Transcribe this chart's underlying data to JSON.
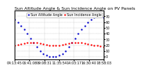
{
  "title": "Sun Altitude Angle & Sun Incidence Angle on PV Panels",
  "legend_labels": [
    "Sun Altitude Angle",
    "Sun Incidence Angle"
  ],
  "legend_colors": [
    "#0000cc",
    "#ff0000"
  ],
  "background_color": "#ffffff",
  "grid_color": "#aaaaaa",
  "x_times": [
    "04:13:45",
    "06:41:08",
    "09:08:31",
    "11:35:54",
    "14:03:17",
    "16:30:40",
    "18:58:03"
  ],
  "blue_x": [
    0,
    1,
    2,
    3,
    4,
    5,
    6,
    7,
    8,
    9,
    10,
    11,
    12,
    13,
    14,
    15,
    16,
    17,
    18,
    19,
    20,
    21,
    22,
    23,
    24,
    25,
    26,
    27,
    28
  ],
  "blue_y": [
    65,
    60,
    54,
    48,
    40,
    32,
    24,
    17,
    10,
    5,
    2,
    0,
    0,
    0,
    2,
    5,
    10,
    17,
    24,
    32,
    40,
    48,
    54,
    60,
    65,
    68,
    70,
    70,
    68
  ],
  "red_x": [
    0,
    1,
    2,
    3,
    4,
    5,
    6,
    7,
    8,
    9,
    10,
    11,
    12,
    13,
    14,
    15,
    16,
    17,
    18,
    19,
    20,
    21,
    22,
    23,
    24,
    25,
    26,
    27,
    28
  ],
  "red_y": [
    20,
    21,
    22,
    23,
    24,
    24,
    24,
    24,
    23,
    22,
    21,
    20,
    19,
    19,
    20,
    21,
    22,
    23,
    24,
    24,
    24,
    24,
    23,
    22,
    21,
    20,
    19,
    18,
    17
  ],
  "ylim": [
    -5,
    80
  ],
  "xlim": [
    0,
    28
  ],
  "yticks": [
    0,
    10,
    20,
    30,
    40,
    50,
    60,
    70
  ],
  "title_fontsize": 4.5,
  "tick_fontsize": 3.5,
  "legend_fontsize": 3.5,
  "dot_size": 1.5
}
